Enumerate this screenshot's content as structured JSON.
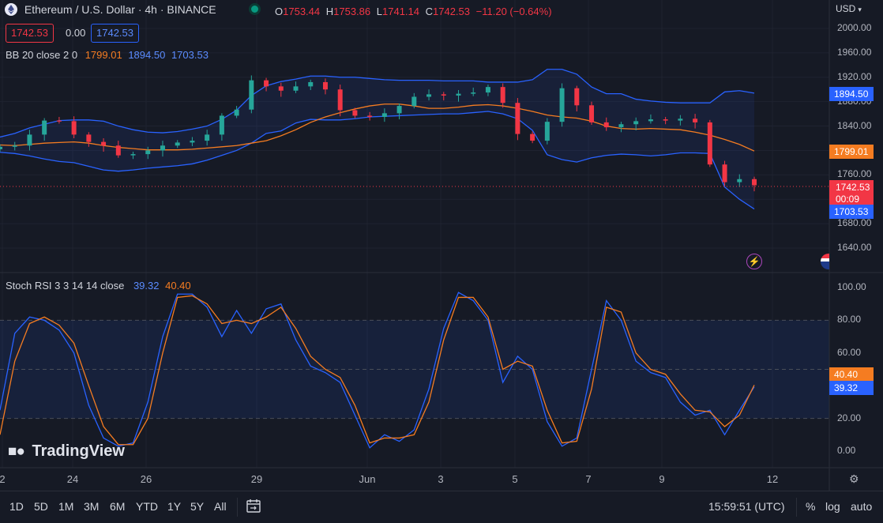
{
  "header": {
    "symbol": "Ethereum / U.S. Dollar · 4h · BINANCE",
    "o_label": "O",
    "o": "1753.44",
    "h_label": "H",
    "h": "1753.86",
    "l_label": "L",
    "l": "1741.14",
    "c_label": "C",
    "c": "1742.53",
    "change": "−11.20 (−0.64%)"
  },
  "bid": "1742.53",
  "spread": "0.00",
  "ask": "1742.53",
  "bb": {
    "label": "BB 20 close 2 0",
    "basis": "1799.01",
    "upper": "1894.50",
    "lower": "1703.53"
  },
  "stoch": {
    "label": "Stoch RSI 3 3 14 14 close",
    "k": "39.32",
    "d": "40.40"
  },
  "currency": "USD",
  "price_axis": [
    "2000.00",
    "1960.00",
    "1920.00",
    "1880.00",
    "1840.00",
    "1800.00",
    "1760.00",
    "1720.00",
    "1680.00",
    "1640.00"
  ],
  "price_tags": {
    "upper": "1894.50",
    "basis": "1799.01",
    "last": "1742.53",
    "countdown": "00:09",
    "lower": "1703.53"
  },
  "stoch_axis": [
    "100.00",
    "80.00",
    "60.00",
    "40.00",
    "20.00",
    "0.00"
  ],
  "stoch_tags": {
    "d": "40.40",
    "k": "39.32"
  },
  "x_axis": [
    "2",
    "24",
    "26",
    "29",
    "Jun",
    "3",
    "5",
    "7",
    "9",
    "12"
  ],
  "timeframes": [
    "1D",
    "5D",
    "1M",
    "3M",
    "6M",
    "YTD",
    "1Y",
    "5Y",
    "All"
  ],
  "clock": "15:59:51 (UTC)",
  "pct": "%",
  "log": "log",
  "auto": "auto",
  "logo": "TradingView",
  "colors": {
    "up": "#26a69a",
    "down": "#f23645",
    "basis": "#f57c21",
    "band": "#2962ff",
    "d": "#f57c21",
    "k": "#2962ff"
  },
  "chart_data": [
    {
      "type": "candlestick",
      "title": "Ethereum / U.S. Dollar · 4h · BINANCE",
      "x_ticks": [
        "2",
        "24",
        "26",
        "29",
        "Jun",
        "3",
        "5",
        "7",
        "9",
        "12"
      ],
      "ylim": [
        1620,
        2020
      ],
      "series": [
        {
          "name": "BB 20 close 2 0 basis",
          "values": [
            1809,
            1808,
            1810,
            1812,
            1813,
            1814,
            1812,
            1808,
            1805,
            1803,
            1801,
            1801,
            1801,
            1802,
            1804,
            1806,
            1808,
            1812,
            1816,
            1824,
            1834,
            1846,
            1855,
            1862,
            1868,
            1873,
            1876,
            1876,
            1873,
            1869,
            1869,
            1871,
            1874,
            1875,
            1873,
            1869,
            1864,
            1858,
            1855,
            1853,
            1848,
            1840,
            1836,
            1835,
            1836,
            1835,
            1834,
            1830,
            1825,
            1818,
            1810,
            1799
          ]
        },
        {
          "name": "BB 20 close 2 0 upper",
          "values": [
            1822,
            1828,
            1837,
            1843,
            1849,
            1850,
            1850,
            1848,
            1840,
            1834,
            1830,
            1829,
            1831,
            1835,
            1840,
            1851,
            1866,
            1890,
            1906,
            1913,
            1917,
            1922,
            1922,
            1920,
            1920,
            1918,
            1916,
            1915,
            1915,
            1915,
            1914,
            1914,
            1914,
            1912,
            1912,
            1912,
            1916,
            1933,
            1933,
            1925,
            1904,
            1893,
            1893,
            1884,
            1881,
            1879,
            1878,
            1878,
            1878,
            1896,
            1898,
            1894
          ]
        },
        {
          "name": "BB 20 close 2 0 lower",
          "values": [
            1797,
            1795,
            1791,
            1786,
            1782,
            1780,
            1774,
            1768,
            1766,
            1768,
            1771,
            1773,
            1775,
            1778,
            1784,
            1792,
            1800,
            1812,
            1828,
            1832,
            1845,
            1851,
            1850,
            1850,
            1852,
            1855,
            1856,
            1857,
            1858,
            1859,
            1860,
            1860,
            1862,
            1864,
            1860,
            1852,
            1833,
            1793,
            1785,
            1781,
            1788,
            1792,
            1794,
            1793,
            1791,
            1793,
            1796,
            1796,
            1795,
            1740,
            1720,
            1704
          ]
        },
        {
          "name": "close",
          "values": [
            1806,
            1808,
            1826,
            1849,
            1848,
            1826,
            1814,
            1808,
            1792,
            1794,
            1800,
            1808,
            1813,
            1816,
            1826,
            1857,
            1867,
            1915,
            1905,
            1898,
            1905,
            1912,
            1900,
            1866,
            1857,
            1855,
            1861,
            1873,
            1888,
            1892,
            1890,
            1893,
            1895,
            1904,
            1878,
            1827,
            1816,
            1847,
            1902,
            1874,
            1846,
            1838,
            1843,
            1848,
            1851,
            1849,
            1852,
            1846,
            1777,
            1748,
            1753,
            1743
          ]
        }
      ]
    },
    {
      "type": "line",
      "title": "Stoch RSI 3 3 14 14 close",
      "ylim": [
        -10,
        110
      ],
      "y_ticks": [
        100,
        80,
        60,
        40,
        20,
        0
      ],
      "series": [
        {
          "name": "K",
          "values": [
            25,
            72,
            82,
            80,
            74,
            60,
            28,
            8,
            3,
            5,
            30,
            70,
            96,
            96,
            88,
            70,
            86,
            72,
            87,
            90,
            68,
            52,
            48,
            42,
            22,
            2,
            10,
            6,
            13,
            38,
            75,
            97,
            92,
            80,
            42,
            58,
            50,
            18,
            3,
            8,
            50,
            92,
            80,
            55,
            48,
            45,
            30,
            22,
            25,
            10,
            25,
            39.32
          ]
        },
        {
          "name": "D",
          "values": [
            10,
            55,
            78,
            82,
            77,
            66,
            40,
            15,
            4,
            4,
            20,
            60,
            94,
            95,
            90,
            78,
            80,
            78,
            82,
            88,
            75,
            58,
            50,
            45,
            28,
            5,
            8,
            8,
            10,
            30,
            68,
            94,
            94,
            82,
            50,
            55,
            52,
            25,
            5,
            6,
            38,
            88,
            85,
            60,
            50,
            47,
            35,
            25,
            24,
            15,
            22,
            40.4
          ]
        }
      ]
    }
  ]
}
